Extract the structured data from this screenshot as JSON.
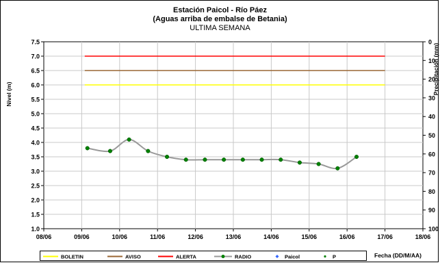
{
  "chart_data": {
    "type": "line",
    "title": "Estación Paicol  - Río Páez",
    "subtitle": "(Aguas arriba de embalse de Betania)",
    "subtitle2": "ULTIMA SEMANA",
    "ylabel": "Nivel (m)",
    "y2label": "Precipitación (mm)",
    "xlabel": "Fecha (DD/M/AA)",
    "x_ticks": [
      "08/06",
      "09/06",
      "10/06",
      "11/06",
      "12/06",
      "13/06",
      "14/06",
      "15/06",
      "16/06",
      "17/06",
      "18/06"
    ],
    "ylim": [
      1.0,
      7.5
    ],
    "y_ticks": [
      "1.0",
      "1.5",
      "2.0",
      "2.5",
      "3.0",
      "3.5",
      "4.0",
      "4.5",
      "5.0",
      "5.5",
      "6.0",
      "6.5",
      "7.0",
      "7.5"
    ],
    "y2lim": [
      0,
      100
    ],
    "y2_ticks": [
      "0",
      "10",
      "20",
      "30",
      "40",
      "50",
      "60",
      "70",
      "80",
      "90",
      "100"
    ],
    "grid": true,
    "thresholds": [
      {
        "name": "BOLETIN",
        "value": 6.0,
        "color": "#ffff00"
      },
      {
        "name": "AVISO",
        "value": 6.5,
        "color": "#996633"
      },
      {
        "name": "ALERTA",
        "value": 7.0,
        "color": "#ff0000"
      }
    ],
    "threshold_span": [
      "09/06",
      "17/06"
    ],
    "series": [
      {
        "name": "RADIO",
        "color": "#999999",
        "marker_color": "#008000",
        "x": [
          9.15,
          9.75,
          10.25,
          10.75,
          11.25,
          11.75,
          12.25,
          12.75,
          13.25,
          13.75,
          14.25,
          14.75,
          15.25,
          15.75,
          16.25
        ],
        "values": [
          3.8,
          3.7,
          4.1,
          3.7,
          3.5,
          3.4,
          3.4,
          3.4,
          3.4,
          3.4,
          3.4,
          3.3,
          3.25,
          3.1,
          3.5
        ]
      }
    ],
    "legend": [
      {
        "label": "BOLETIN",
        "kind": "line",
        "color": "#ffff00"
      },
      {
        "label": "AVISO",
        "kind": "line",
        "color": "#996633"
      },
      {
        "label": "ALERTA",
        "kind": "line",
        "color": "#ff0000"
      },
      {
        "label": "RADIO",
        "kind": "line-marker",
        "color": "#999999",
        "marker": "#008000"
      },
      {
        "label": "Paicol",
        "kind": "diamond",
        "color": "#3366ff"
      },
      {
        "label": "P",
        "kind": "dot",
        "color": "#008000"
      }
    ],
    "legend_position": "bottom"
  }
}
